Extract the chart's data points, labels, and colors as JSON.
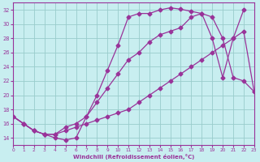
{
  "xlabel": "Windchill (Refroidissement éolien,°C)",
  "bg_color": "#c8eef0",
  "line_color": "#993399",
  "grid_color": "#99cccc",
  "x_min": 0,
  "x_max": 23,
  "y_min": 13,
  "y_max": 33,
  "xticks": [
    0,
    1,
    2,
    3,
    4,
    5,
    6,
    7,
    8,
    9,
    10,
    11,
    12,
    13,
    14,
    15,
    16,
    17,
    18,
    19,
    20,
    21,
    22,
    23
  ],
  "yticks": [
    14,
    16,
    18,
    20,
    22,
    24,
    26,
    28,
    30,
    32
  ],
  "curve_upper_x": [
    0,
    1,
    2,
    3,
    4,
    5,
    6,
    7,
    8,
    9,
    10,
    11,
    12,
    13,
    14,
    15,
    16,
    17,
    18,
    19,
    20,
    21,
    22
  ],
  "curve_upper_y": [
    17,
    16,
    15,
    14.5,
    14,
    13.7,
    14,
    17,
    20,
    23.5,
    27,
    31,
    31.5,
    31.5,
    32,
    32.3,
    32.1,
    31.8,
    31.5,
    28,
    22.5,
    28,
    32
  ],
  "curve_mid_x": [
    0,
    1,
    2,
    3,
    4,
    5,
    6,
    7,
    8,
    9,
    10,
    11,
    12,
    13,
    14,
    15,
    16,
    17,
    18,
    19,
    20,
    21,
    22,
    23
  ],
  "curve_mid_y": [
    17,
    16,
    15,
    14.5,
    14.5,
    15.5,
    16,
    17,
    19,
    21,
    23,
    25,
    26,
    27.5,
    28.5,
    29,
    29.5,
    31,
    31.5,
    31,
    28,
    22.5,
    22,
    20.5
  ],
  "curve_lower_x": [
    0,
    1,
    2,
    3,
    4,
    5,
    6,
    7,
    8,
    9,
    10,
    11,
    12,
    13,
    14,
    15,
    16,
    17,
    18,
    19,
    20,
    21,
    22,
    23
  ],
  "curve_lower_y": [
    17,
    16,
    15,
    14.5,
    14.5,
    15,
    15.5,
    16,
    16.5,
    17,
    17.5,
    18,
    19,
    20,
    21,
    22,
    23,
    24,
    25,
    26,
    27,
    28,
    29,
    20.5
  ]
}
